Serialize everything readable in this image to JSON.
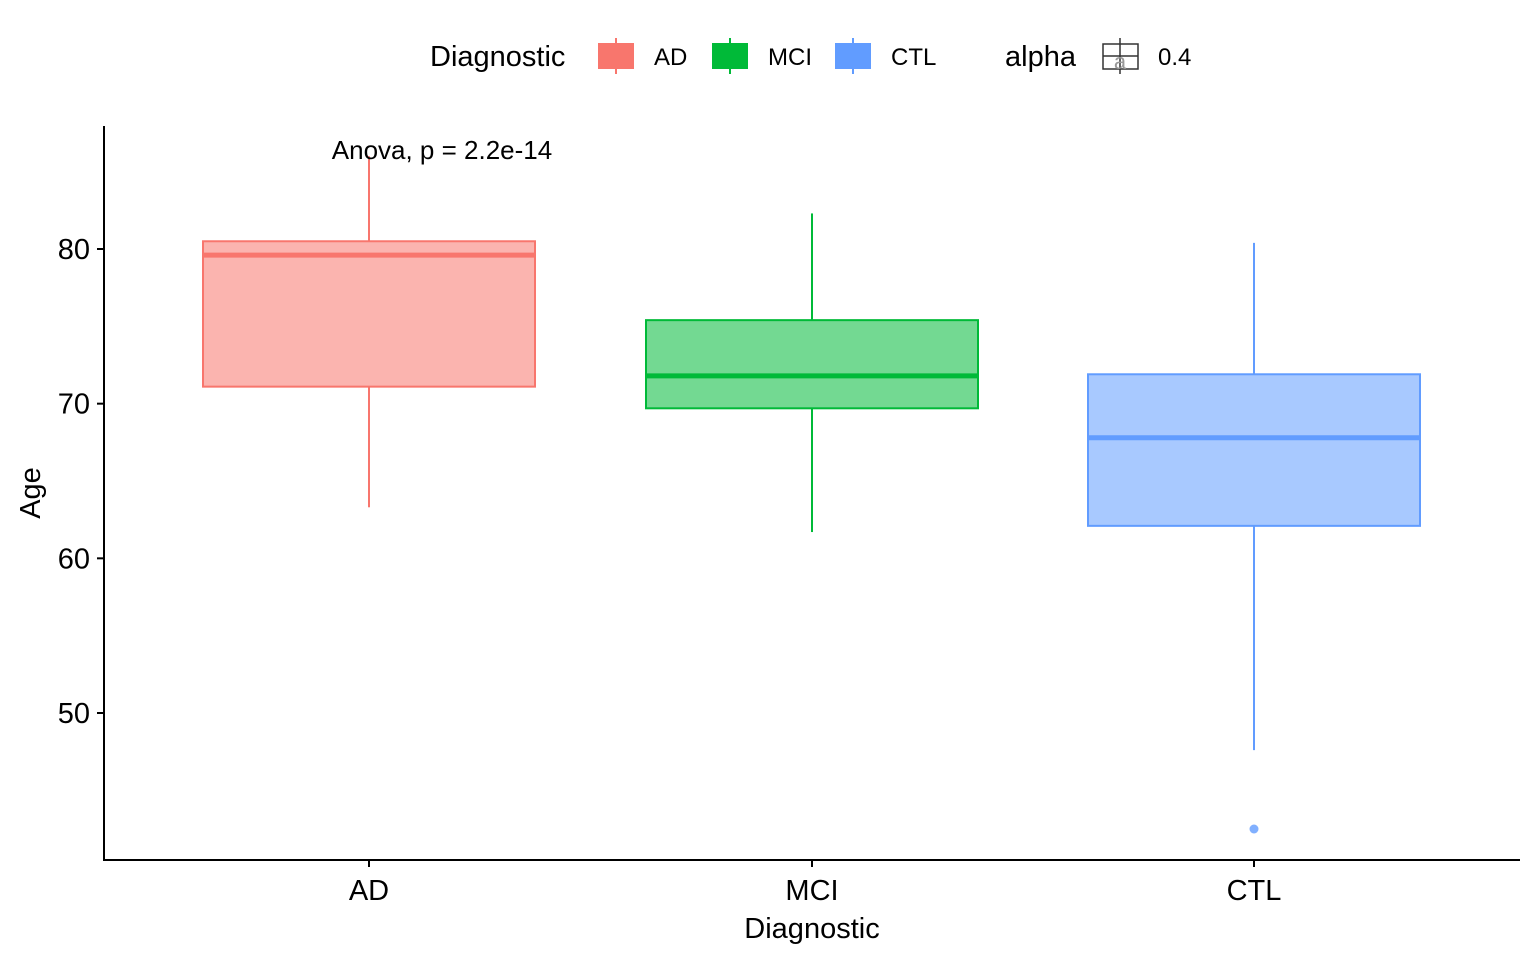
{
  "chart_data": {
    "type": "boxplot",
    "title": "",
    "xlabel": "Diagnostic",
    "ylabel": "Age",
    "ylim": [
      40.5,
      88
    ],
    "yticks": [
      50,
      60,
      70,
      80
    ],
    "annotation": "Anova, p = 2.2e-14",
    "categories": [
      "AD",
      "MCI",
      "CTL"
    ],
    "colors": [
      "#F8766D",
      "#00BA38",
      "#619CFF"
    ],
    "fill_alpha": 0.55,
    "boxes": [
      {
        "label": "AD",
        "whisker_low": 63.3,
        "q1": 71.1,
        "median": 79.6,
        "q3": 80.5,
        "whisker_high": 86.0,
        "outliers": []
      },
      {
        "label": "MCI",
        "whisker_low": 61.7,
        "q1": 69.7,
        "median": 71.8,
        "q3": 75.4,
        "whisker_high": 82.3,
        "outliers": []
      },
      {
        "label": "CTL",
        "whisker_low": 47.6,
        "q1": 62.1,
        "median": 67.8,
        "q3": 71.9,
        "whisker_high": 80.4,
        "outliers": [
          42.5
        ]
      }
    ],
    "legend": {
      "title": "Diagnostic",
      "items": [
        "AD",
        "MCI",
        "CTL"
      ],
      "alpha_title": "alpha",
      "alpha_key_glyph": "a",
      "alpha_value": "0.4",
      "position": "top"
    }
  }
}
